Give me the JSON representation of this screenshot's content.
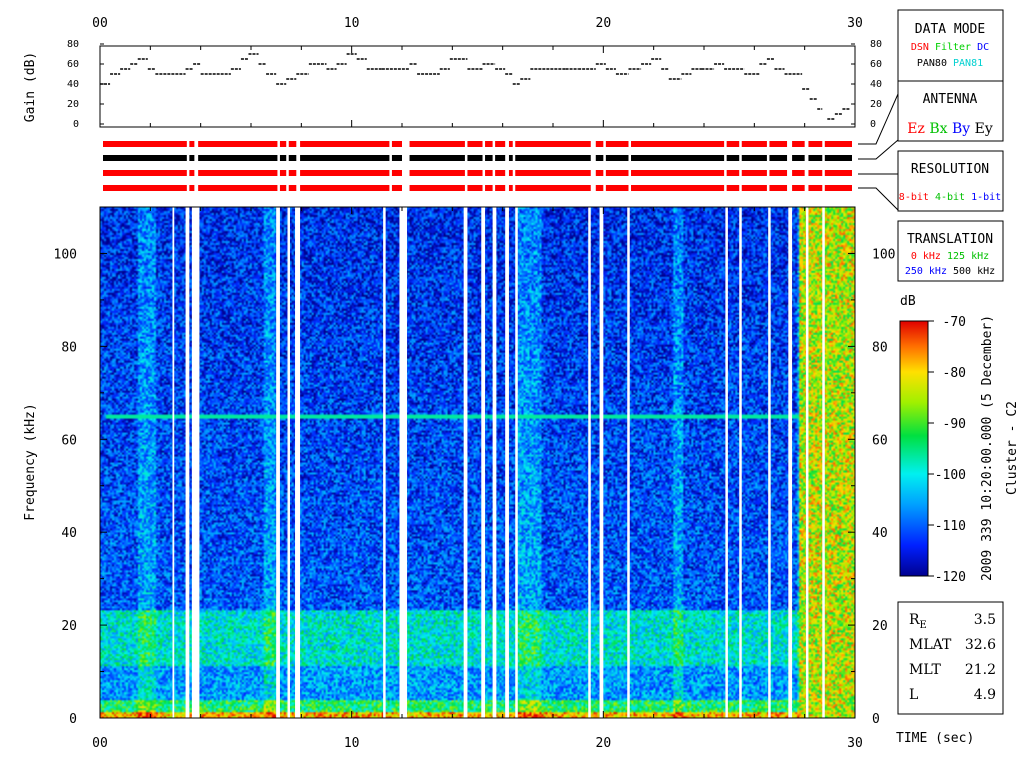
{
  "chart_data": {
    "type": "heatmap",
    "xlabel": "TIME (sec)",
    "time_ticks": [
      "00",
      "10",
      "20",
      "30"
    ],
    "time_range": [
      0,
      30
    ],
    "gain_panel": {
      "ylabel": "Gain (dB)",
      "ylim": [
        0,
        80
      ],
      "ticks": [
        "0",
        "20",
        "40",
        "60",
        "80"
      ],
      "segments": [
        {
          "t0": 0.0,
          "t1": 0.4,
          "gain": 40
        },
        {
          "t0": 0.4,
          "t1": 0.8,
          "gain": 50
        },
        {
          "t0": 0.8,
          "t1": 1.2,
          "gain": 55
        },
        {
          "t0": 1.2,
          "t1": 1.5,
          "gain": 60
        },
        {
          "t0": 1.5,
          "t1": 1.9,
          "gain": 65
        },
        {
          "t0": 1.9,
          "t1": 2.2,
          "gain": 55
        },
        {
          "t0": 2.2,
          "t1": 3.4,
          "gain": 50
        },
        {
          "t0": 3.4,
          "t1": 3.7,
          "gain": 55
        },
        {
          "t0": 3.7,
          "t1": 4.0,
          "gain": 60
        },
        {
          "t0": 4.0,
          "t1": 5.2,
          "gain": 50
        },
        {
          "t0": 5.2,
          "t1": 5.6,
          "gain": 55
        },
        {
          "t0": 5.6,
          "t1": 5.9,
          "gain": 65
        },
        {
          "t0": 5.9,
          "t1": 6.3,
          "gain": 70
        },
        {
          "t0": 6.3,
          "t1": 6.6,
          "gain": 60
        },
        {
          "t0": 6.6,
          "t1": 7.0,
          "gain": 50
        },
        {
          "t0": 7.0,
          "t1": 7.4,
          "gain": 40
        },
        {
          "t0": 7.4,
          "t1": 7.8,
          "gain": 45
        },
        {
          "t0": 7.8,
          "t1": 8.3,
          "gain": 50
        },
        {
          "t0": 8.3,
          "t1": 9.0,
          "gain": 60
        },
        {
          "t0": 9.0,
          "t1": 9.4,
          "gain": 55
        },
        {
          "t0": 9.4,
          "t1": 9.8,
          "gain": 60
        },
        {
          "t0": 9.8,
          "t1": 10.2,
          "gain": 70
        },
        {
          "t0": 10.2,
          "t1": 10.6,
          "gain": 65
        },
        {
          "t0": 10.6,
          "t1": 11.2,
          "gain": 55
        },
        {
          "t0": 11.2,
          "t1": 12.3,
          "gain": 55
        },
        {
          "t0": 12.3,
          "t1": 12.6,
          "gain": 60
        },
        {
          "t0": 12.6,
          "t1": 13.5,
          "gain": 50
        },
        {
          "t0": 13.5,
          "t1": 13.9,
          "gain": 55
        },
        {
          "t0": 13.9,
          "t1": 14.6,
          "gain": 65
        },
        {
          "t0": 14.6,
          "t1": 15.2,
          "gain": 55
        },
        {
          "t0": 15.2,
          "t1": 15.7,
          "gain": 60
        },
        {
          "t0": 15.7,
          "t1": 16.1,
          "gain": 55
        },
        {
          "t0": 16.1,
          "t1": 16.4,
          "gain": 50
        },
        {
          "t0": 16.4,
          "t1": 16.7,
          "gain": 40
        },
        {
          "t0": 16.7,
          "t1": 17.1,
          "gain": 45
        },
        {
          "t0": 17.1,
          "t1": 18.5,
          "gain": 55
        },
        {
          "t0": 18.5,
          "t1": 19.0,
          "gain": 55
        },
        {
          "t0": 19.0,
          "t1": 19.7,
          "gain": 55
        },
        {
          "t0": 19.7,
          "t1": 20.1,
          "gain": 60
        },
        {
          "t0": 20.1,
          "t1": 20.5,
          "gain": 55
        },
        {
          "t0": 20.5,
          "t1": 21.0,
          "gain": 50
        },
        {
          "t0": 21.0,
          "t1": 21.5,
          "gain": 55
        },
        {
          "t0": 21.5,
          "t1": 21.9,
          "gain": 60
        },
        {
          "t0": 21.9,
          "t1": 22.3,
          "gain": 65
        },
        {
          "t0": 22.3,
          "t1": 22.6,
          "gain": 55
        },
        {
          "t0": 22.6,
          "t1": 23.1,
          "gain": 45
        },
        {
          "t0": 23.1,
          "t1": 23.5,
          "gain": 50
        },
        {
          "t0": 23.5,
          "t1": 23.9,
          "gain": 55
        },
        {
          "t0": 23.9,
          "t1": 24.4,
          "gain": 55
        },
        {
          "t0": 24.4,
          "t1": 24.8,
          "gain": 60
        },
        {
          "t0": 24.8,
          "t1": 25.6,
          "gain": 55
        },
        {
          "t0": 25.6,
          "t1": 26.2,
          "gain": 50
        },
        {
          "t0": 26.2,
          "t1": 26.5,
          "gain": 60
        },
        {
          "t0": 26.5,
          "t1": 26.8,
          "gain": 65
        },
        {
          "t0": 26.8,
          "t1": 27.2,
          "gain": 55
        },
        {
          "t0": 27.2,
          "t1": 27.9,
          "gain": 50
        },
        {
          "t0": 27.9,
          "t1": 28.2,
          "gain": 35
        },
        {
          "t0": 28.2,
          "t1": 28.5,
          "gain": 25
        },
        {
          "t0": 28.5,
          "t1": 28.7,
          "gain": 15
        },
        {
          "t0": 28.9,
          "t1": 29.2,
          "gain": 5
        },
        {
          "t0": 29.2,
          "t1": 29.5,
          "gain": 10
        },
        {
          "t0": 29.5,
          "t1": 29.8,
          "gain": 15
        }
      ]
    },
    "status_bars": {
      "rows": [
        "DATA MODE",
        "ANTENNA",
        "RESOLUTION",
        "TRANSLATION"
      ],
      "colors": [
        "#ff0000",
        "#000000",
        "#ff0000",
        "#ff0000"
      ],
      "gaps": [
        [
          3.45,
          3.55
        ],
        [
          3.75,
          3.9
        ],
        [
          7.05,
          7.15
        ],
        [
          7.4,
          7.5
        ],
        [
          7.8,
          7.95
        ],
        [
          11.5,
          11.6
        ],
        [
          12.0,
          12.3
        ],
        [
          14.5,
          14.6
        ],
        [
          15.2,
          15.3
        ],
        [
          15.6,
          15.7
        ],
        [
          16.1,
          16.25
        ],
        [
          16.4,
          16.5
        ],
        [
          19.5,
          19.7
        ],
        [
          20.0,
          20.1
        ],
        [
          21.0,
          21.1
        ],
        [
          24.8,
          24.9
        ],
        [
          25.4,
          25.5
        ],
        [
          26.5,
          26.6
        ],
        [
          27.3,
          27.5
        ],
        [
          28.0,
          28.15
        ],
        [
          28.7,
          28.8
        ]
      ]
    },
    "spectrogram": {
      "ylabel": "Frequency (kHz)",
      "ylim": [
        0,
        110
      ],
      "freq_ticks": [
        "0",
        "20",
        "40",
        "60",
        "80",
        "100"
      ],
      "line_frequency_khz": 65,
      "line_t_range": [
        0.2,
        27.9
      ],
      "data_gaps": [
        [
          2.88,
          2.95
        ],
        [
          3.4,
          3.55
        ],
        [
          3.65,
          3.95
        ],
        [
          7.0,
          7.15
        ],
        [
          7.45,
          7.55
        ],
        [
          7.75,
          7.95
        ],
        [
          11.25,
          11.35
        ],
        [
          11.9,
          12.2
        ],
        [
          14.45,
          14.6
        ],
        [
          15.15,
          15.3
        ],
        [
          15.6,
          15.75
        ],
        [
          16.1,
          16.25
        ],
        [
          16.5,
          16.6
        ],
        [
          19.4,
          19.5
        ],
        [
          19.85,
          20.0
        ],
        [
          20.95,
          21.05
        ],
        [
          24.85,
          24.95
        ],
        [
          25.4,
          25.5
        ],
        [
          26.55,
          26.65
        ],
        [
          27.35,
          27.5
        ],
        [
          28.05,
          28.15
        ],
        [
          28.7,
          28.8
        ]
      ],
      "enhanced_regions": [
        [
          1.5,
          2.2
        ],
        [
          6.5,
          7.0
        ],
        [
          16.5,
          17.5
        ],
        [
          22.8,
          23.2
        ],
        [
          27.7,
          30.0
        ]
      ],
      "hot_region": [
        27.8,
        30.0
      ]
    },
    "colorbar": {
      "label": "dB",
      "min": -120,
      "max": -70,
      "ticks": [
        "-70",
        "-80",
        "-90",
        "-100",
        "-110",
        "-120"
      ]
    }
  },
  "legends": {
    "data_mode": {
      "title": "DATA MODE",
      "r1": [
        {
          "t": "DSN",
          "c": "#ff0000"
        },
        {
          "t": "Filter",
          "c": "#00d000"
        },
        {
          "t": "DC",
          "c": "#0000ff"
        }
      ],
      "r2": [
        {
          "t": "PAN80",
          "c": "#000000"
        },
        {
          "t": "PAN81",
          "c": "#00d0d0"
        }
      ]
    },
    "antenna": {
      "title": "ANTENNA",
      "items": [
        {
          "t": "Ez",
          "c": "#ff0000"
        },
        {
          "t": "Bx",
          "c": "#00c000"
        },
        {
          "t": "By",
          "c": "#0000ff"
        },
        {
          "t": "Ey",
          "c": "#000000"
        }
      ]
    },
    "resolution": {
      "title": "RESOLUTION",
      "items": [
        {
          "t": "8-bit",
          "c": "#ff0000"
        },
        {
          "t": "4-bit",
          "c": "#00c000"
        },
        {
          "t": "1-bit",
          "c": "#0000ff"
        }
      ]
    },
    "translation": {
      "title": "TRANSLATION",
      "r1": [
        {
          "t": "0 kHz",
          "c": "#ff0000"
        },
        {
          "t": "125 kHz",
          "c": "#00c000"
        }
      ],
      "r2": [
        {
          "t": "250 kHz",
          "c": "#0000ff"
        },
        {
          "t": "500 kHz",
          "c": "#000000"
        }
      ]
    }
  },
  "sidebar": {
    "date_label": "2009 339 10:20:00.000 (5 December)",
    "spacecraft": "Cluster - C2"
  },
  "orbit": {
    "items": [
      {
        "label": "R",
        "sub": "E",
        "value": "3.5"
      },
      {
        "label": "MLAT",
        "sub": "",
        "value": "32.6"
      },
      {
        "label": "MLT",
        "sub": "",
        "value": "21.2"
      },
      {
        "label": "L",
        "sub": "",
        "value": "4.9"
      }
    ]
  }
}
